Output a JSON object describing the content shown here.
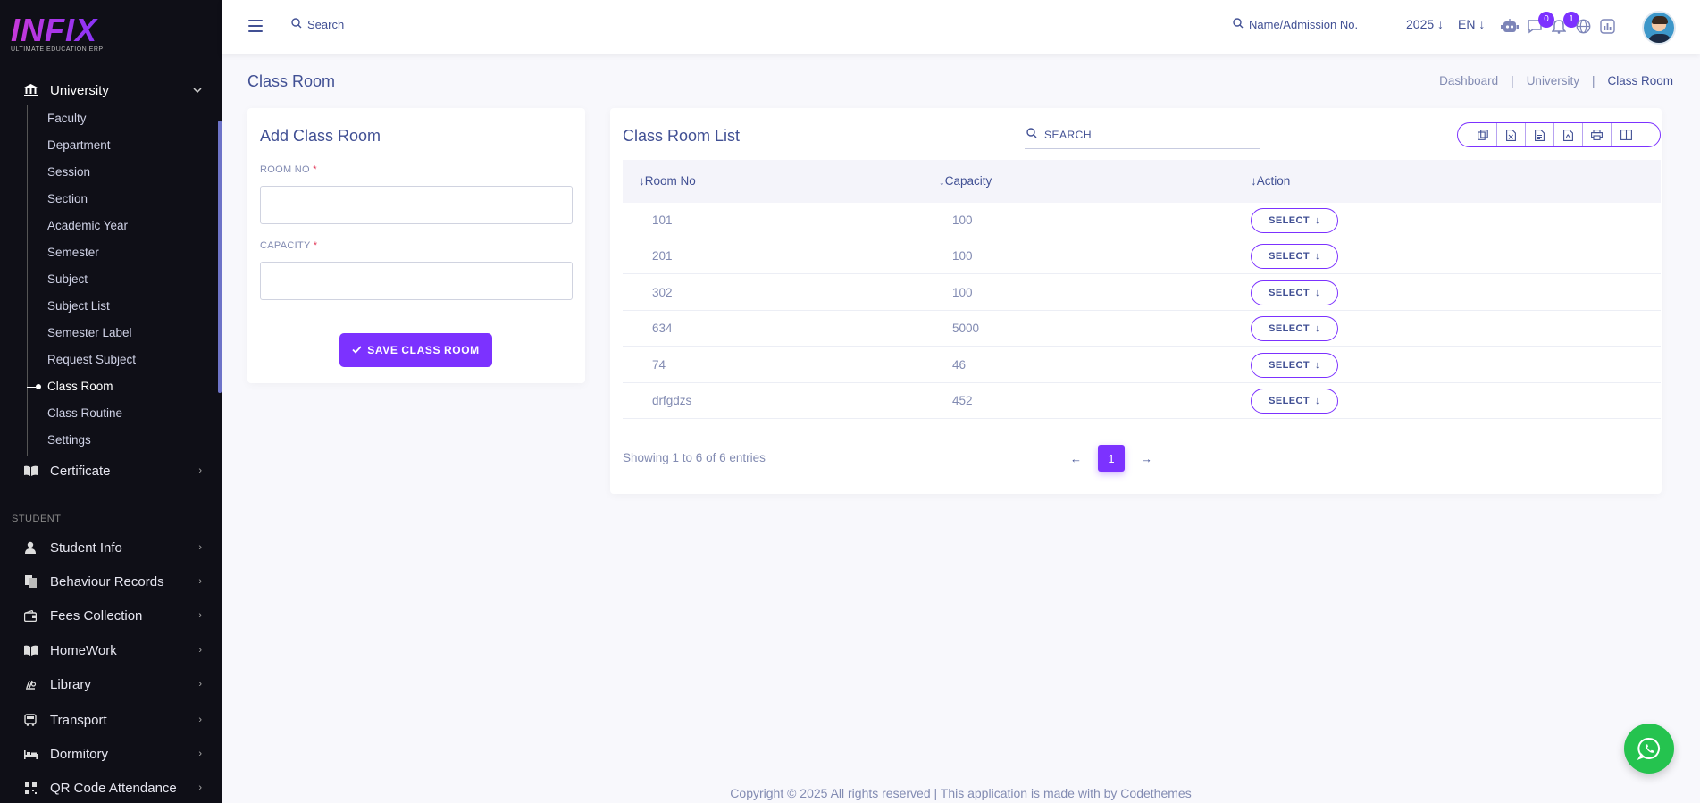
{
  "brand": {
    "name": "INFIX",
    "tagline": "ULTIMATE EDUCATION ERP"
  },
  "sidebar": {
    "group": {
      "label": "University",
      "icon": "university-icon"
    },
    "subitems": [
      {
        "label": "Faculty"
      },
      {
        "label": "Department"
      },
      {
        "label": "Session"
      },
      {
        "label": "Section"
      },
      {
        "label": "Academic Year"
      },
      {
        "label": "Semester"
      },
      {
        "label": "Subject"
      },
      {
        "label": "Subject List"
      },
      {
        "label": "Semester Label"
      },
      {
        "label": "Request Subject"
      },
      {
        "label": "Class Room",
        "active": true
      },
      {
        "label": "Class Routine"
      },
      {
        "label": "Settings"
      }
    ],
    "certificate": {
      "label": "Certificate"
    },
    "section_label": "STUDENT",
    "items": [
      {
        "label": "Student Info"
      },
      {
        "label": "Behaviour Records"
      },
      {
        "label": "Fees Collection"
      },
      {
        "label": "HomeWork"
      },
      {
        "label": "Library"
      },
      {
        "label": "Transport"
      },
      {
        "label": "Dormitory"
      },
      {
        "label": "QR Code Attendance"
      }
    ]
  },
  "header": {
    "search_label": "Search",
    "student_search_label": "Name/Admission No.",
    "year": "2025",
    "language": "EN",
    "chat_badge": "0",
    "notification_badge": "1"
  },
  "page": {
    "title": "Class Room",
    "breadcrumb": [
      "Dashboard",
      "University",
      "Class Room"
    ]
  },
  "form": {
    "title": "Add Class Room",
    "room_no_label": "ROOM NO",
    "capacity_label": "CAPACITY",
    "required_mark": "*",
    "save_label": "SAVE CLASS ROOM"
  },
  "list": {
    "title": "Class Room List",
    "search_label": "SEARCH",
    "columns": [
      "Room No",
      "Capacity",
      "Action"
    ],
    "rows": [
      {
        "room": "101",
        "capacity": "100"
      },
      {
        "room": "201",
        "capacity": "100"
      },
      {
        "room": "302",
        "capacity": "100"
      },
      {
        "room": "634",
        "capacity": "5000"
      },
      {
        "room": "74",
        "capacity": "46"
      },
      {
        "room": "drfgdzs",
        "capacity": "452"
      }
    ],
    "select_label": "SELECT",
    "showing": "Showing 1 to 6 of 6 entries",
    "current_page": "1"
  },
  "footer": "Copyright © 2025 All rights reserved | This application is made with by Codethemes",
  "colors": {
    "accent": "#7c32ff",
    "sidebar": "#0f0f17",
    "text": "#415094",
    "muted": "#828bb2"
  }
}
